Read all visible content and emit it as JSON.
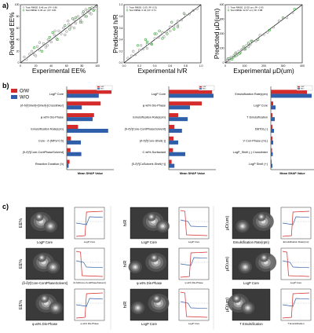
{
  "panels": {
    "a": "a)",
    "b": "b)",
    "c": "c)"
  },
  "colors": {
    "ow": "#d42a2a",
    "wo": "#2f5fa8",
    "test": "#3aa53a",
    "train": "#9a9a9a",
    "heat_bg": "#3a3a3a",
    "heat_hi": "#e8e8e8"
  },
  "chart_data": [
    {
      "type": "scatter",
      "title": "",
      "xlabel": "Experimental EE%",
      "ylabel": "Predicted EE%",
      "xlim": [
        0,
        100
      ],
      "ylim": [
        0,
        100
      ],
      "xticks": [
        "0",
        "20",
        "40",
        "60",
        "80",
        "100"
      ],
      "yticks": [
        "0",
        "20",
        "40",
        "60",
        "80",
        "100"
      ],
      "legend": [
        "Train RMSE: 8.46 um | R²: 0.86",
        "Test RMSE: 9.36 um | R²: 0.81"
      ],
      "series": [
        {
          "name": "Train",
          "points": [
            [
              5,
              10
            ],
            [
              8,
              6
            ],
            [
              12,
              15
            ],
            [
              15,
              20
            ],
            [
              18,
              14
            ],
            [
              22,
              28
            ],
            [
              25,
              22
            ],
            [
              30,
              33
            ],
            [
              33,
              27
            ],
            [
              36,
              40
            ],
            [
              40,
              36
            ],
            [
              44,
              48
            ],
            [
              47,
              42
            ],
            [
              50,
              55
            ],
            [
              53,
              50
            ],
            [
              56,
              60
            ],
            [
              60,
              54
            ],
            [
              63,
              66
            ],
            [
              66,
              62
            ],
            [
              70,
              74
            ],
            [
              72,
              68
            ],
            [
              75,
              80
            ],
            [
              78,
              74
            ],
            [
              81,
              85
            ],
            [
              84,
              80
            ],
            [
              87,
              90
            ],
            [
              90,
              86
            ],
            [
              93,
              95
            ],
            [
              96,
              92
            ],
            [
              98,
              97
            ],
            [
              62,
              72
            ],
            [
              58,
              48
            ],
            [
              45,
              55
            ],
            [
              70,
              60
            ],
            [
              85,
              92
            ],
            [
              35,
              30
            ],
            [
              25,
              35
            ],
            [
              20,
              12
            ],
            [
              92,
              84
            ],
            [
              80,
              70
            ]
          ]
        },
        {
          "name": "Test",
          "points": [
            [
              18,
              26
            ],
            [
              28,
              20
            ],
            [
              38,
              44
            ],
            [
              48,
              40
            ],
            [
              58,
              64
            ],
            [
              64,
              58
            ],
            [
              72,
              78
            ],
            [
              78,
              70
            ],
            [
              86,
              80
            ],
            [
              90,
              94
            ],
            [
              42,
              52
            ],
            [
              68,
              76
            ],
            [
              82,
              88
            ],
            [
              95,
              90
            ]
          ]
        }
      ]
    },
    {
      "type": "scatter",
      "title": "",
      "xlabel": "Experimental h/R",
      "ylabel": "Predicted h/R",
      "xlim": [
        0,
        1.0
      ],
      "ylim": [
        0,
        1.0
      ],
      "xticks": [
        "0.0",
        "0.2",
        "0.4",
        "0.6",
        "0.8",
        "1.0"
      ],
      "yticks": [
        "0.0",
        "0.2",
        "0.4",
        "0.6",
        "0.8",
        "1.0"
      ],
      "legend": [
        "Train RMSE: 0.03 | R²: 0.91",
        "Test RMSE: 0.04 | R²: 0.71"
      ],
      "series": [
        {
          "name": "Train",
          "points": [
            [
              0.05,
              0.08
            ],
            [
              0.1,
              0.12
            ],
            [
              0.15,
              0.14
            ],
            [
              0.2,
              0.22
            ],
            [
              0.25,
              0.24
            ],
            [
              0.3,
              0.32
            ],
            [
              0.35,
              0.33
            ],
            [
              0.4,
              0.42
            ],
            [
              0.45,
              0.44
            ],
            [
              0.5,
              0.52
            ],
            [
              0.55,
              0.53
            ],
            [
              0.6,
              0.62
            ],
            [
              0.65,
              0.63
            ],
            [
              0.7,
              0.72
            ],
            [
              0.75,
              0.74
            ],
            [
              0.8,
              0.82
            ],
            [
              0.85,
              0.84
            ],
            [
              0.9,
              0.9
            ],
            [
              0.95,
              0.93
            ],
            [
              0.12,
              0.2
            ],
            [
              0.22,
              0.3
            ],
            [
              0.6,
              0.55
            ],
            [
              0.42,
              0.5
            ],
            [
              0.7,
              0.65
            ],
            [
              0.3,
              0.25
            ],
            [
              0.52,
              0.45
            ]
          ]
        },
        {
          "name": "Test",
          "points": [
            [
              0.18,
              0.3
            ],
            [
              0.28,
              0.4
            ],
            [
              0.36,
              0.32
            ],
            [
              0.46,
              0.55
            ],
            [
              0.56,
              0.5
            ],
            [
              0.62,
              0.7
            ],
            [
              0.7,
              0.62
            ],
            [
              0.78,
              0.85
            ],
            [
              0.4,
              0.5
            ],
            [
              0.5,
              0.42
            ],
            [
              0.3,
              0.36
            ],
            [
              0.65,
              0.58
            ]
          ]
        }
      ]
    },
    {
      "type": "scatter",
      "title": "",
      "xlabel": "Experimental μD(um)",
      "ylabel": "Predicted μD(um)",
      "xlim": [
        0,
        400
      ],
      "ylim": [
        0,
        400
      ],
      "xticks": [
        "0",
        "100",
        "200",
        "300",
        "400"
      ],
      "yticks": [
        "0",
        "100",
        "200",
        "300",
        "400"
      ],
      "legend": [
        "Train RMSE: 15.92 um | R²: 0.93",
        "Test RMSE: 22.67 um | R²: 0.88"
      ],
      "series": [
        {
          "name": "Train",
          "points": [
            [
              10,
              20
            ],
            [
              20,
              15
            ],
            [
              30,
              40
            ],
            [
              40,
              35
            ],
            [
              50,
              60
            ],
            [
              60,
              50
            ],
            [
              70,
              80
            ],
            [
              80,
              72
            ],
            [
              90,
              95
            ],
            [
              100,
              92
            ],
            [
              110,
              120
            ],
            [
              120,
              110
            ],
            [
              140,
              150
            ],
            [
              160,
              150
            ],
            [
              180,
              190
            ],
            [
              200,
              195
            ],
            [
              220,
              210
            ],
            [
              250,
              245
            ],
            [
              280,
              290
            ],
            [
              320,
              310
            ],
            [
              350,
              345
            ],
            [
              25,
              30
            ],
            [
              45,
              50
            ],
            [
              65,
              58
            ],
            [
              85,
              90
            ],
            [
              130,
              125
            ]
          ]
        },
        {
          "name": "Test",
          "points": [
            [
              15,
              30
            ],
            [
              35,
              25
            ],
            [
              55,
              70
            ],
            [
              75,
              65
            ],
            [
              95,
              110
            ],
            [
              105,
              95
            ],
            [
              135,
              150
            ],
            [
              170,
              160
            ],
            [
              230,
              225
            ],
            [
              300,
              310
            ],
            [
              360,
              370
            ],
            [
              50,
              45
            ],
            [
              120,
              135
            ]
          ]
        }
      ]
    },
    {
      "type": "bar",
      "orientation": "horizontal",
      "xlabel": "Mean SHAP Value",
      "legend": [
        "O/W",
        "W/O"
      ],
      "categories": [
        "LogP Core",
        "(δ-δ)²[Shell]+[Shell]-[Crosslinker]",
        "φ wt% Dis-Phase",
        "Emulsification Rate(rpm)",
        "Core - δ (MPa^0.5)",
        "(δ-δ)²[Core-ContPhaseSolvent]",
        "Reaction Duration (h)"
      ],
      "series": [
        {
          "name": "O/W",
          "values": [
            9.5,
            7.2,
            5.8,
            2.4,
            0.9,
            0.8,
            0.6
          ]
        },
        {
          "name": "W/O",
          "values": [
            6.8,
            3.2,
            5.5,
            8.8,
            3.0,
            3.1,
            0.4
          ]
        }
      ],
      "xlim": [
        0,
        10
      ]
    },
    {
      "type": "bar",
      "orientation": "horizontal",
      "xlabel": "Mean SHAP Value",
      "legend": [
        "O/W",
        "W/O"
      ],
      "categories": [
        "LogP Core",
        "φ wt% Dis-Phase",
        "Emulsification Rate(rpm)",
        "(δ-δ)²[Core-ContPhaseSolvent]",
        "(δ-δ)²[Core-Shell(-)]",
        "C wt%-Surfactant",
        "(δ-δ)²[CoSolvent-Shell(+)]"
      ],
      "series": [
        {
          "name": "O/W",
          "values": [
            0.092,
            0.07,
            0.02,
            0.012,
            0.01,
            0.009,
            0.006
          ]
        },
        {
          "name": "W/O",
          "values": [
            0.095,
            0.045,
            0.04,
            0.028,
            0.02,
            0.035,
            0.012
          ]
        }
      ],
      "xlim": [
        0,
        0.1
      ]
    },
    {
      "type": "bar",
      "orientation": "horizontal",
      "xlabel": "Mean SHAP Value",
      "legend": [
        "O/W",
        "W/O"
      ],
      "categories": [
        "Emulsification Rate(rpm)",
        "LogP Core",
        "T Emulsification",
        "DBTDL(-)",
        "V Con-Phase (mL)",
        "LogP_Shell (-) Crosslinker",
        "LogP Shell (+)"
      ],
      "series": [
        {
          "name": "O/W",
          "values": [
            46,
            3,
            2,
            2,
            2,
            1.5,
            1
          ]
        },
        {
          "name": "W/O",
          "values": [
            52,
            6,
            5,
            4,
            3,
            2.5,
            2
          ]
        }
      ],
      "xlim": [
        0,
        55
      ]
    }
  ],
  "c_panels": [
    [
      "EE%",
      "LogP Core"
    ],
    [
      "EE%",
      "(δ-δ)²[Core-ContPhaseSolvent]"
    ],
    [
      "EE%",
      "φ wt% Dis-Phase"
    ],
    [
      "h/R",
      "LogP Core"
    ],
    [
      "h/R",
      "φ wt% Dis-Phase"
    ],
    [
      "h/R",
      "LogP Core"
    ],
    [
      "μD(um)",
      "Emulsification Rate(rpm)"
    ],
    [
      "μD(um)",
      "LogP Core"
    ],
    [
      "μD(um)",
      "T Emulsification"
    ]
  ]
}
